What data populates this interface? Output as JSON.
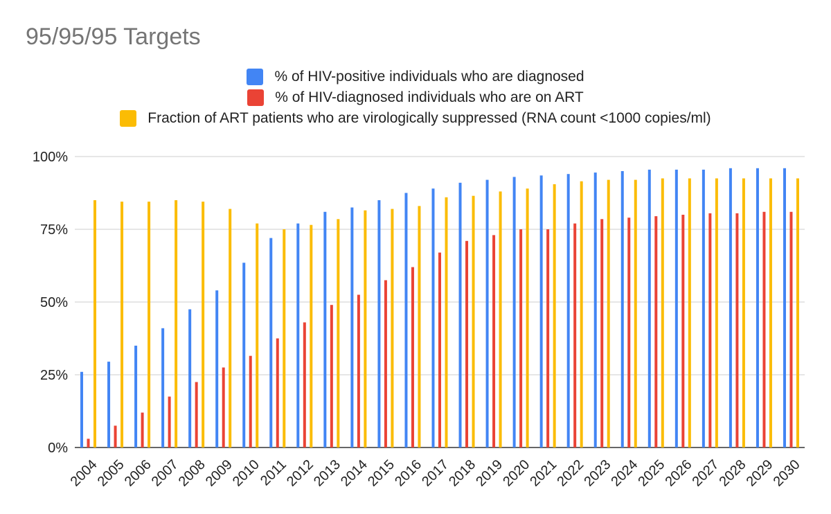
{
  "chart_data": {
    "type": "bar",
    "title": "95/95/95 Targets",
    "xlabel": "",
    "ylabel": "",
    "ylim": [
      0,
      100
    ],
    "yticks": [
      "0%",
      "25%",
      "50%",
      "75%",
      "100%"
    ],
    "grid": true,
    "legend_position": "top",
    "categories": [
      "2004",
      "2005",
      "2006",
      "2007",
      "2008",
      "2009",
      "2010",
      "2011",
      "2012",
      "2013",
      "2014",
      "2015",
      "2016",
      "2017",
      "2018",
      "2019",
      "2020",
      "2021",
      "2022",
      "2023",
      "2024",
      "2025",
      "2026",
      "2027",
      "2028",
      "2029",
      "2030"
    ],
    "series": [
      {
        "name": "% of HIV-positive individuals who are diagnosed",
        "color": "#4285f4",
        "values": [
          26,
          29.5,
          35,
          41,
          47.5,
          54,
          63.5,
          72,
          77,
          81,
          82.5,
          85,
          87.5,
          89,
          91,
          92,
          93,
          93.5,
          94,
          94.5,
          95,
          95.5,
          95.5,
          95.5,
          96,
          96,
          96
        ]
      },
      {
        "name": "% of HIV-diagnosed individuals who are on ART",
        "color": "#ea4335",
        "values": [
          3,
          7.5,
          12,
          17.5,
          22.5,
          27.5,
          31.5,
          37.5,
          43,
          49,
          52.5,
          57.5,
          62,
          67,
          71,
          73,
          75,
          75,
          77,
          78.5,
          79,
          79.5,
          80,
          80.5,
          80.5,
          81,
          81
        ]
      },
      {
        "name": "Fraction of ART patients who are virologically suppressed (RNA count <1000 copies/ml)",
        "color": "#fbbc04",
        "values": [
          85,
          84.5,
          84.5,
          85,
          84.5,
          82,
          77,
          75,
          76.5,
          78.5,
          81.5,
          82,
          83,
          86,
          86.5,
          88,
          89,
          90.5,
          91.5,
          92,
          92,
          92.5,
          92.5,
          92.5,
          92.5,
          92.5,
          92.5
        ]
      }
    ]
  }
}
